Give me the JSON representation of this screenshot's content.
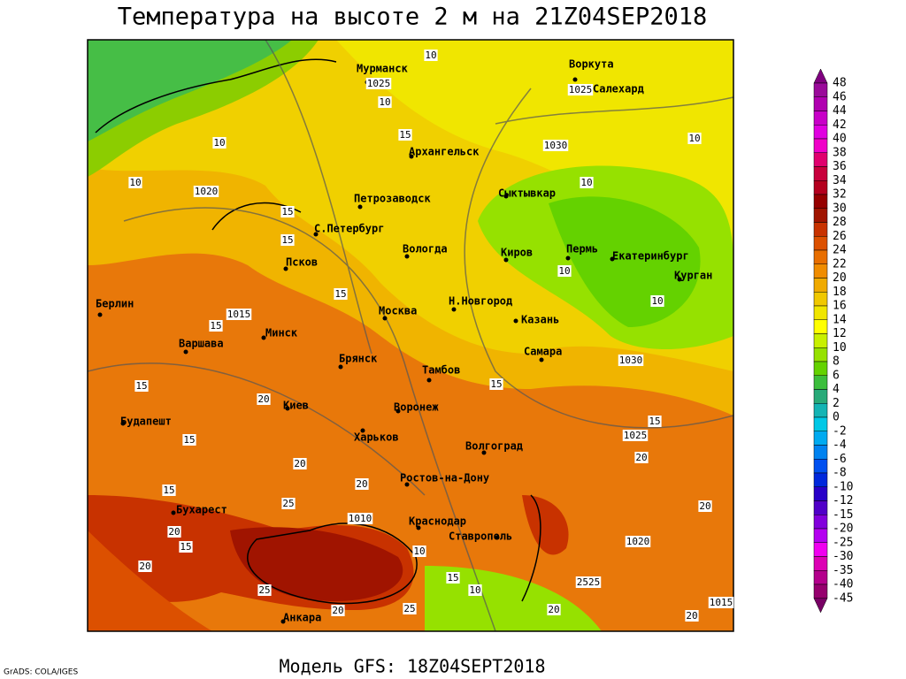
{
  "title": "Температура на высоте 2 м на 21Z04SEP2018",
  "footer": "Модель GFS: 18Z04SEPT2018",
  "credit": "GrADS: COLA/IGES",
  "cities": [
    "Мурманск",
    "Воркута",
    "Салехард",
    "Архангельск",
    "Петрозаводск",
    "Сыктывкар",
    "С.Петербург",
    "Вологда",
    "Киров",
    "Пермь",
    "Екатеринбург",
    "Псков",
    "Курган",
    "Берлин",
    "Н.Новгород",
    "Москва",
    "Казань",
    "Минск",
    "Варшава",
    "Самара",
    "Брянск",
    "Тамбов",
    "Киев",
    "Воронеж",
    "Будапешт",
    "Харьков",
    "Волгоград",
    "Ростов-на-Дону",
    "Бухарест",
    "Краснодар",
    "Ставрополь",
    "Анкара"
  ],
  "contour_labels": [
    10,
    1025,
    10,
    10,
    15,
    1020,
    10,
    15,
    15,
    1030,
    1025,
    10,
    10,
    10,
    10,
    1030,
    15,
    1015,
    15,
    15,
    20,
    15,
    15,
    15,
    1025,
    20,
    20,
    20,
    15,
    25,
    1010,
    20,
    15,
    10,
    1020,
    20,
    20,
    15,
    10,
    25,
    25,
    20,
    20,
    20,
    1015,
    2525
  ],
  "colorbar": {
    "labels": [
      48,
      46,
      44,
      42,
      40,
      38,
      36,
      34,
      32,
      30,
      28,
      26,
      24,
      22,
      20,
      18,
      16,
      14,
      12,
      10,
      8,
      6,
      4,
      2,
      0,
      -2,
      -4,
      -6,
      -8,
      -10,
      -12,
      -15,
      -20,
      -25,
      -30,
      -35,
      -40,
      -45
    ],
    "colors": [
      "#800080",
      "#9a0a9a",
      "#b000b0",
      "#c800c8",
      "#e000e0",
      "#f000c8",
      "#e0006e",
      "#c8003c",
      "#b4001e",
      "#960000",
      "#a01400",
      "#c83200",
      "#dc5000",
      "#e86e00",
      "#f08c00",
      "#f0aa00",
      "#f0c800",
      "#f0e600",
      "#ffff00",
      "#c8f000",
      "#96e100",
      "#64d200",
      "#3cbe3c",
      "#28aa78",
      "#14b4b4",
      "#00c8e6",
      "#00aaf0",
      "#0082f0",
      "#0050f0",
      "#0028dc",
      "#2800c8",
      "#5000c8",
      "#8200dc",
      "#b400f0",
      "#f000f0",
      "#dc00b4",
      "#b4008c",
      "#96006e",
      "#780064"
    ]
  }
}
